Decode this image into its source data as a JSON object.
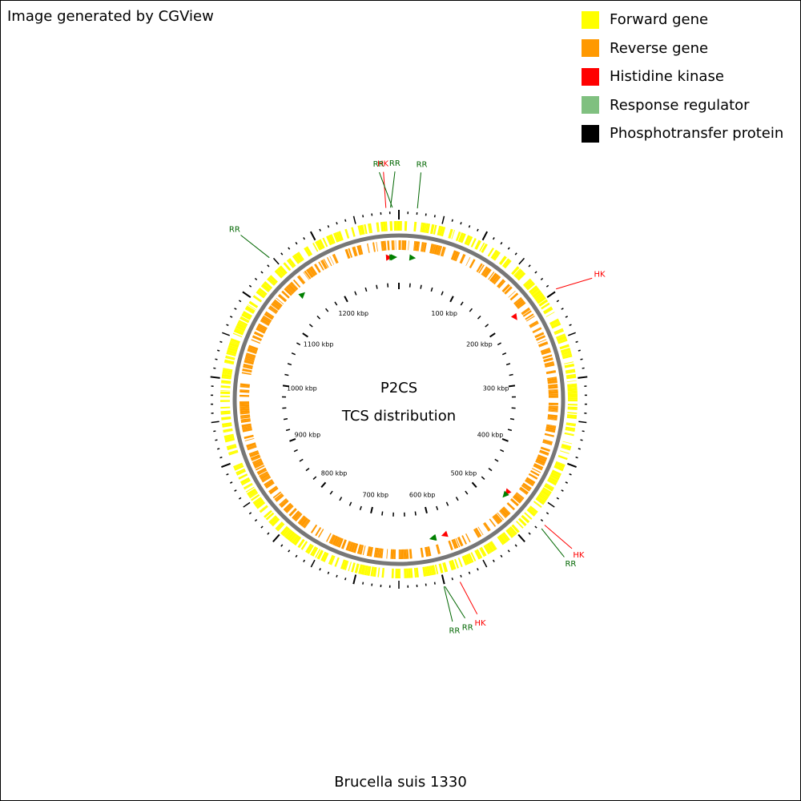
{
  "header": {
    "credit": "Image generated by CGView"
  },
  "footer": {
    "organism": "Brucella suis 1330"
  },
  "legend": [
    {
      "label": "Forward gene",
      "color": "#ffff00"
    },
    {
      "label": "Reverse gene",
      "color": "#ff9900"
    },
    {
      "label": "Histidine kinase",
      "color": "#ff0000"
    },
    {
      "label": "Response regulator",
      "color": "#80c080"
    },
    {
      "label": "Phosphotransfer protein",
      "color": "#000000"
    }
  ],
  "center": {
    "line1": "P2CS",
    "line2": "TCS distribution"
  },
  "chart_data": {
    "type": "circular-genome-map",
    "genome_length_kbp": 1300,
    "tick_unit": "kbp",
    "tick_labels": [
      "100 kbp",
      "200 kbp",
      "300 kbp",
      "400 kbp",
      "500 kbp",
      "600 kbp",
      "700 kbp",
      "800 kbp",
      "900 kbp",
      "1000 kbp",
      "1100 kbp",
      "1200 kbp"
    ],
    "tick_values_kbp": [
      100,
      200,
      300,
      400,
      500,
      600,
      700,
      800,
      900,
      1000,
      1100,
      1200
    ],
    "tracks": [
      "Forward gene",
      "Reverse gene"
    ],
    "features": [
      {
        "type": "HK",
        "label": "HK",
        "position_kbp": 1286
      },
      {
        "type": "RR",
        "label": "RR",
        "position_kbp": 1291
      },
      {
        "type": "RR",
        "label": "RR",
        "position_kbp": 1293
      },
      {
        "type": "RR",
        "label": "RR",
        "position_kbp": 20
      },
      {
        "type": "RR",
        "label": "RR",
        "position_kbp": 1147
      },
      {
        "type": "HK",
        "label": "HK",
        "position_kbp": 198
      },
      {
        "type": "HK",
        "label": "HK",
        "position_kbp": 472
      },
      {
        "type": "RR",
        "label": "RR",
        "position_kbp": 477
      },
      {
        "type": "RR",
        "label": "RR",
        "position_kbp": 600
      },
      {
        "type": "RR",
        "label": "RR",
        "position_kbp": 601
      },
      {
        "type": "HK",
        "label": "HK",
        "position_kbp": 583
      }
    ],
    "colors": {
      "forward": "#ffff00",
      "reverse": "#ff9900",
      "histidine_kinase": "#ff0000",
      "response_regulator": "#80c080",
      "label_rr": "#006600",
      "label_hk": "#ff0000",
      "backbone": "#808080"
    }
  }
}
